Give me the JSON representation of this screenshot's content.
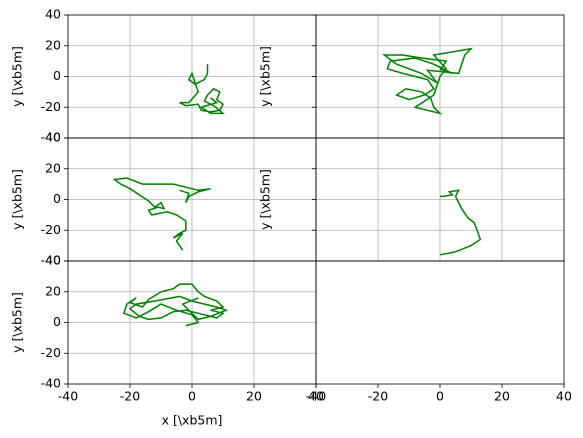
{
  "chart_data": [
    {
      "type": "line",
      "ylabel": "y [\\xb5m]",
      "color": "#008000",
      "grid": true,
      "xlim": [
        -40,
        40
      ],
      "ylim": [
        -40,
        40
      ],
      "xticks": [
        -40,
        -20,
        0,
        20,
        40
      ],
      "yticks": [
        -40,
        -20,
        0,
        20,
        40
      ],
      "x": [
        5,
        5,
        4,
        1,
        -1,
        0,
        1,
        2,
        -1,
        -4,
        -2,
        2,
        3,
        6,
        9,
        10,
        8,
        9,
        7,
        5,
        4,
        7,
        10,
        6,
        3,
        8,
        6
      ],
      "y": [
        8,
        2,
        -2,
        -5,
        -2,
        2,
        -4,
        -10,
        -17,
        -17,
        -19,
        -18,
        -22,
        -23,
        -22,
        -18,
        -15,
        -10,
        -8,
        -12,
        -16,
        -19,
        -24,
        -24,
        -20,
        -17,
        -14
      ]
    },
    {
      "type": "line",
      "ylabel": "y [\\xb5m]",
      "color": "#008000",
      "grid": true,
      "xlim": [
        -40,
        40
      ],
      "ylim": [
        -40,
        40
      ],
      "xticks": [
        -40,
        -20,
        0,
        20,
        40
      ],
      "yticks": [
        -40,
        -20,
        0,
        20,
        40
      ],
      "x": [
        0,
        4,
        -2,
        -8,
        -16,
        -17,
        -12,
        -8,
        -4,
        -2,
        -5,
        -10,
        -14,
        -11,
        -6,
        -3,
        -2,
        0,
        -4,
        -8,
        -2,
        0,
        2,
        -2,
        4,
        10,
        8,
        6,
        -4,
        -1,
        -6,
        -14,
        -18,
        -12,
        -6,
        2,
        0
      ],
      "y": [
        5,
        2,
        8,
        12,
        10,
        5,
        2,
        0,
        -2,
        -8,
        -12,
        -15,
        -12,
        -8,
        -10,
        -14,
        -20,
        -24,
        -22,
        -20,
        -12,
        0,
        5,
        14,
        16,
        18,
        14,
        2,
        4,
        -4,
        2,
        8,
        14,
        14,
        12,
        10,
        4
      ]
    },
    {
      "type": "line",
      "ylabel": "y [\\xb5m]",
      "color": "#008000",
      "grid": true,
      "xlim": [
        -40,
        40
      ],
      "ylim": [
        -40,
        40
      ],
      "xticks": [
        -40,
        -20,
        0,
        20,
        40
      ],
      "yticks": [
        -40,
        -20,
        0,
        20,
        40
      ],
      "x": [
        -3,
        -5,
        -3,
        -6,
        -4,
        -2,
        -2,
        -5,
        -8,
        -13,
        -14,
        -11,
        -9,
        -10,
        -12,
        -14,
        -17,
        -20,
        -23,
        -25,
        -21,
        -16,
        -12,
        -6,
        -2,
        2,
        6,
        2,
        -1,
        -2,
        -1,
        -4
      ],
      "y": [
        -33,
        -27,
        -22,
        -25,
        -22,
        -20,
        -14,
        -10,
        -8,
        -10,
        -7,
        -5,
        -6,
        -2,
        -5,
        -1,
        3,
        7,
        10,
        13,
        14,
        10,
        10,
        10,
        8,
        6,
        7,
        5,
        2,
        -2,
        4,
        6
      ]
    },
    {
      "type": "line",
      "ylabel": "y [\\xb5m]",
      "color": "#008000",
      "grid": true,
      "xlim": [
        -40,
        40
      ],
      "ylim": [
        -40,
        40
      ],
      "xticks": [
        -40,
        -20,
        0,
        20,
        40
      ],
      "yticks": [
        -40,
        -20,
        0,
        20,
        40
      ],
      "x": [
        0,
        5,
        10,
        13,
        12,
        11,
        9,
        7,
        6,
        5,
        6,
        3,
        4,
        1,
        0
      ],
      "y": [
        -36,
        -34,
        -30,
        -26,
        -20,
        -15,
        -12,
        -6,
        -2,
        2,
        6,
        5,
        3,
        2,
        2
      ]
    },
    {
      "type": "line",
      "ylabel": "y [\\xb5m]",
      "xlabel": "x [\\xb5m]",
      "color": "#008000",
      "grid": true,
      "xlim": [
        -40,
        40
      ],
      "ylim": [
        -40,
        40
      ],
      "xticks": [
        -40,
        -20,
        0,
        20,
        40
      ],
      "yticks": [
        -40,
        -20,
        0,
        20,
        40
      ],
      "x": [
        -2,
        2,
        0,
        -5,
        -10,
        -14,
        -18,
        -22,
        -21,
        -18,
        -20,
        -16,
        -14,
        -10,
        -6,
        -4,
        0,
        2,
        4,
        8,
        10,
        6,
        10,
        8,
        4,
        -2,
        -6,
        -10,
        -14,
        -17,
        -20,
        -18,
        -12,
        -4,
        0,
        4,
        8,
        11,
        6,
        2,
        -3,
        2
      ],
      "y": [
        -2,
        0,
        5,
        8,
        12,
        7,
        3,
        6,
        12,
        16,
        13,
        10,
        15,
        20,
        22,
        25,
        25,
        20,
        17,
        14,
        10,
        8,
        6,
        3,
        5,
        8,
        7,
        3,
        2,
        4,
        9,
        12,
        14,
        17,
        14,
        12,
        10,
        8,
        4,
        2,
        12,
        16
      ]
    },
    {
      "type": "line",
      "grid": false,
      "xlim": [
        -40,
        40
      ],
      "ylim": [
        -40,
        40
      ],
      "xticks": [
        -40,
        -20,
        0,
        20,
        40
      ]
    }
  ]
}
